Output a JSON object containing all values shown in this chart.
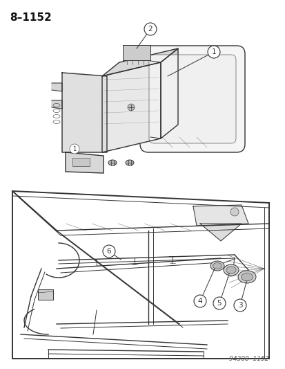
{
  "title": "8–1152",
  "footer": "94308  1152",
  "background_color": "#ffffff",
  "line_color": "#333333",
  "text_color": "#111111",
  "light_gray": "#aaaaaa",
  "mid_gray": "#888888",
  "title_fontsize": 11,
  "footer_fontsize": 6.5,
  "callout_fontsize": 7.5,
  "fig_width": 4.14,
  "fig_height": 5.33,
  "dpi": 100
}
